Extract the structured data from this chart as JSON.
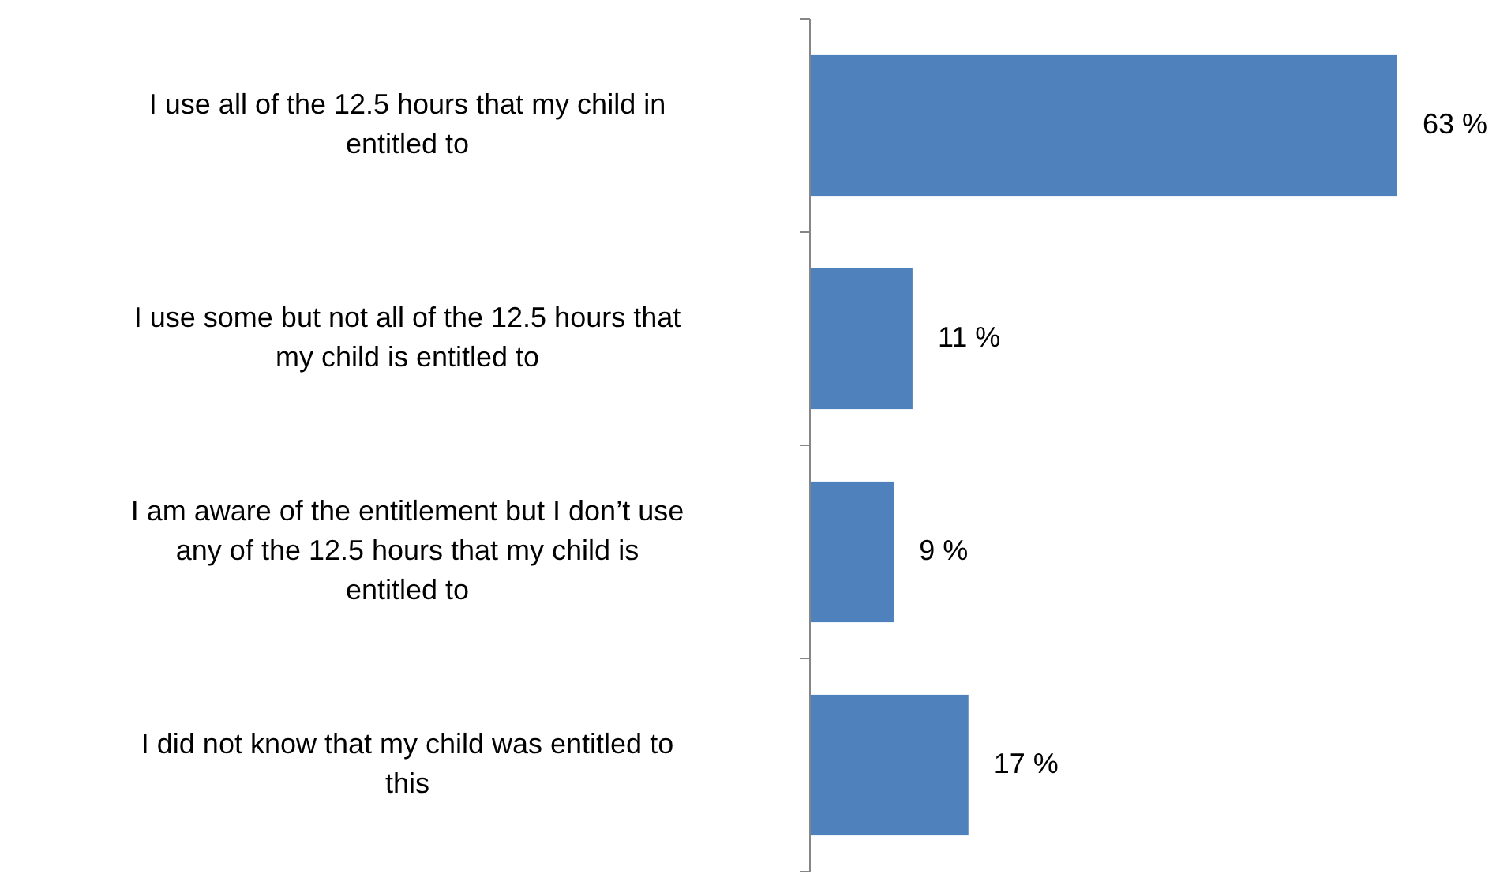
{
  "chart_data": {
    "type": "bar",
    "orientation": "horizontal",
    "categories": [
      "I use all of the 12.5 hours that my child in entitled to",
      "I use some but not all of the 12.5 hours that my child is entitled to",
      "I am aware of the entitlement but I don’t use any of the 12.5 hours that my child is entitled to",
      "I did not know that my child was entitled to this"
    ],
    "values": [
      63,
      11,
      9,
      17
    ],
    "value_labels": [
      "63 %",
      "11 %",
      "9 %",
      "17 %"
    ],
    "color": "#4f81bd"
  }
}
